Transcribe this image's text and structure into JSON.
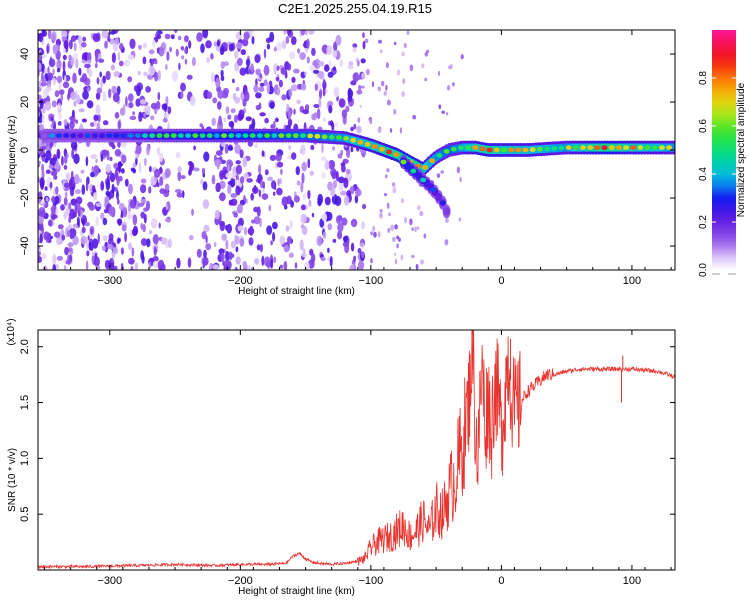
{
  "title": "C2E1.2025.255.04.19.R15",
  "chart_data": [
    {
      "type": "heatmap",
      "xlabel": "Height of straight line (km)",
      "ylabel": "Frequency (Hz)",
      "xlim": [
        -355,
        133
      ],
      "ylim": [
        -50,
        50
      ],
      "xticks": [
        -300,
        -200,
        -100,
        0,
        100
      ],
      "yticks": [
        -40,
        -20,
        0,
        20,
        40
      ],
      "colorbar": {
        "label": "Normalized spectral amplitude",
        "range": [
          0.0,
          1.0
        ],
        "ticks": [
          0.0,
          0.2,
          0.4,
          0.6,
          0.8
        ],
        "tick_labels": [
          "0.0",
          "0.2",
          "0.4",
          "0.6",
          "0.8"
        ]
      },
      "traces": [
        {
          "x": [
            -350,
            -300,
            -250,
            -200,
            -150,
            -120,
            -100,
            -80,
            -70,
            -60,
            -50,
            -40,
            -30,
            -20,
            -10,
            0,
            20,
            50,
            80,
            100,
            133
          ],
          "y": [
            6,
            6,
            6,
            6,
            6,
            5,
            2,
            -2,
            -5,
            -8,
            -3,
            0,
            1,
            1,
            0,
            0,
            0,
            1,
            1,
            1,
            1
          ],
          "amplitude": [
            0.25,
            0.3,
            0.45,
            0.5,
            0.55,
            0.6,
            0.7,
            0.75,
            0.8,
            0.7,
            0.6,
            0.55,
            0.6,
            0.7,
            0.75,
            0.7,
            0.65,
            0.6,
            0.8,
            0.7,
            0.6
          ]
        },
        {
          "x": [
            -75,
            -65,
            -55,
            -50,
            -45,
            -40
          ],
          "y": [
            -5,
            -10,
            -15,
            -18,
            -22,
            -28
          ],
          "amplitude": [
            0.5,
            0.45,
            0.4,
            0.35,
            0.3,
            0.25
          ]
        }
      ]
    },
    {
      "type": "line",
      "xlabel": "Height of straight line (km)",
      "ylabel": "SNR (10 * v/v)",
      "y_multiplier": "(x10⁴)",
      "xlim": [
        -355,
        133
      ],
      "ylim": [
        0,
        2.15
      ],
      "xticks": [
        -300,
        -200,
        -100,
        0,
        100
      ],
      "yticks": [
        0.5,
        1.0,
        1.5,
        2.0
      ],
      "ytick_labels": [
        "0.5",
        "1.0",
        "1.5",
        "2.0"
      ],
      "series": [
        {
          "color": "#e8332e",
          "x": [
            -355,
            -320,
            -280,
            -250,
            -220,
            -200,
            -180,
            -165,
            -160,
            -155,
            -150,
            -145,
            -140,
            -130,
            -120,
            -110,
            -105,
            -100,
            -95,
            -90,
            -85,
            -80,
            -75,
            -70,
            -65,
            -60,
            -55,
            -50,
            -45,
            -40,
            -35,
            -30,
            -25,
            -22,
            -20,
            -18,
            -15,
            -12,
            -10,
            -8,
            -5,
            -2,
            0,
            5,
            10,
            15,
            20,
            25,
            30,
            35,
            40,
            50,
            60,
            70,
            80,
            90,
            95,
            100,
            110,
            120,
            133
          ],
          "y": [
            0.03,
            0.03,
            0.04,
            0.05,
            0.04,
            0.05,
            0.05,
            0.06,
            0.12,
            0.15,
            0.1,
            0.07,
            0.06,
            0.05,
            0.06,
            0.08,
            0.1,
            0.2,
            0.25,
            0.28,
            0.3,
            0.35,
            0.4,
            0.3,
            0.35,
            0.45,
            0.35,
            0.55,
            0.5,
            0.7,
            0.85,
            1.1,
            1.5,
            2.1,
            1.3,
            1.0,
            1.8,
            1.3,
            1.6,
            1.2,
            1.7,
            1.5,
            1.2,
            1.9,
            1.4,
            1.5,
            1.6,
            1.65,
            1.7,
            1.75,
            1.75,
            1.78,
            1.8,
            1.8,
            1.8,
            1.8,
            1.8,
            1.8,
            1.79,
            1.78,
            1.73
          ],
          "spikes": [
            {
              "x": -22,
              "y": 2.15
            },
            {
              "x": 7,
              "y": 2.07
            },
            {
              "x": 92,
              "y": 1.5
            },
            {
              "x": 93,
              "y": 1.92
            }
          ]
        }
      ]
    }
  ]
}
